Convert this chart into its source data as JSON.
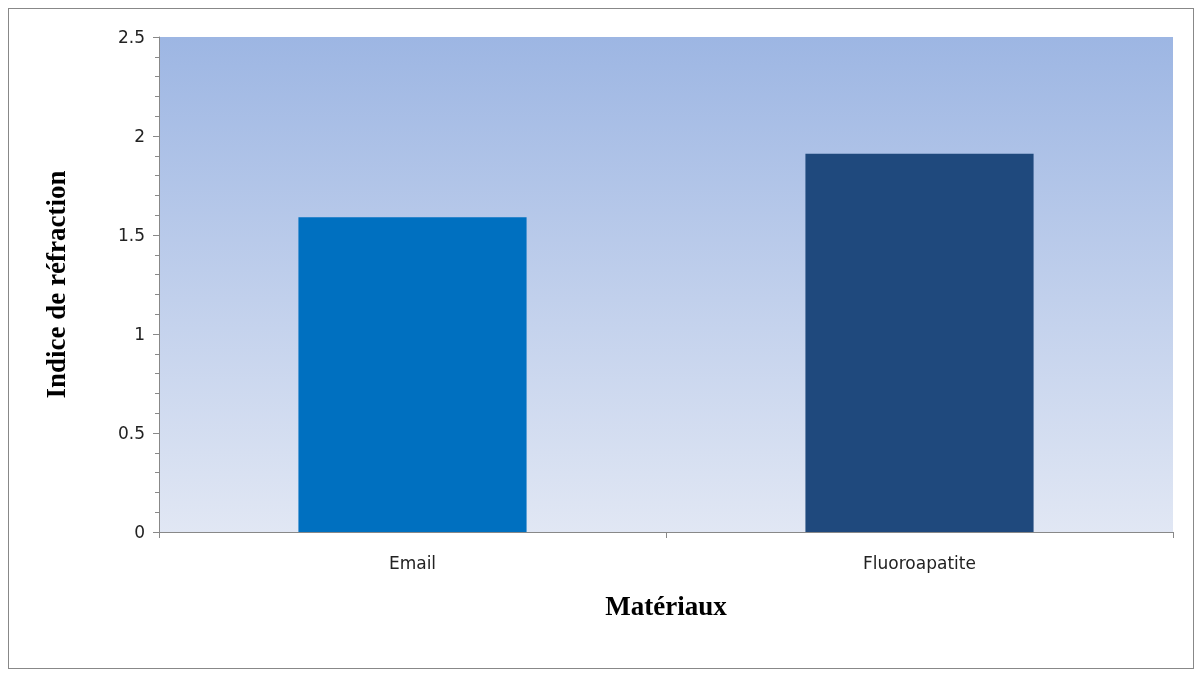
{
  "chart_data": {
    "type": "bar",
    "xlabel": "Matériaux",
    "ylabel": "Indice de réfraction",
    "categories": [
      "Email",
      "Fluoroapatite"
    ],
    "values": [
      1.59,
      1.91
    ],
    "colors": [
      "#0070c0",
      "#1f497d"
    ],
    "ylim": [
      0,
      2.5
    ],
    "yticks": [
      0,
      0.5,
      1,
      1.5,
      2,
      2.5
    ],
    "grid": false
  }
}
